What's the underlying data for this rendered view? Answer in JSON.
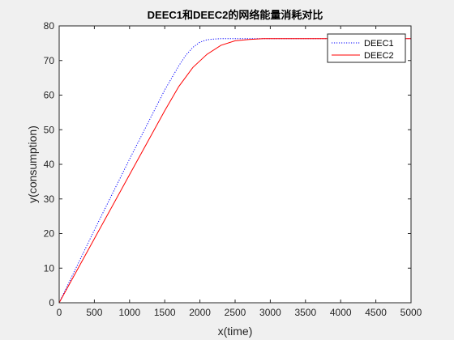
{
  "chart_data": {
    "type": "line",
    "title": "DEEC1和DEEC2的网络能量消耗对比",
    "xlabel": "x(time)",
    "ylabel": "y(consumption)",
    "xlim": [
      0,
      5000
    ],
    "ylim": [
      0,
      80
    ],
    "xticks": [
      0,
      500,
      1000,
      1500,
      2000,
      2500,
      3000,
      3500,
      4000,
      4500,
      5000
    ],
    "yticks": [
      0,
      10,
      20,
      30,
      40,
      50,
      60,
      70,
      80
    ],
    "grid": false,
    "legend_position": "top-right",
    "series": [
      {
        "name": "DEEC1",
        "color": "#0000ff",
        "style": "dotted",
        "x": [
          0,
          500,
          1000,
          1500,
          1700,
          1800,
          1900,
          2000,
          2100,
          2200,
          2300,
          2500,
          3000,
          3500,
          4000,
          4500,
          5000
        ],
        "y": [
          0,
          21,
          41.5,
          61.5,
          68.5,
          71.5,
          73.8,
          75.3,
          76.0,
          76.2,
          76.3,
          76.3,
          76.3,
          76.3,
          76.3,
          76.3,
          76.3
        ]
      },
      {
        "name": "DEEC2",
        "color": "#ff0000",
        "style": "solid",
        "x": [
          0,
          500,
          1000,
          1500,
          1700,
          1900,
          2100,
          2300,
          2500,
          2700,
          2900,
          3200,
          3500,
          4000,
          4500,
          5000
        ],
        "y": [
          0,
          18.5,
          37,
          55.5,
          62.5,
          68.0,
          71.8,
          74.4,
          75.7,
          76.1,
          76.3,
          76.3,
          76.3,
          76.3,
          76.3,
          76.3
        ]
      }
    ]
  }
}
